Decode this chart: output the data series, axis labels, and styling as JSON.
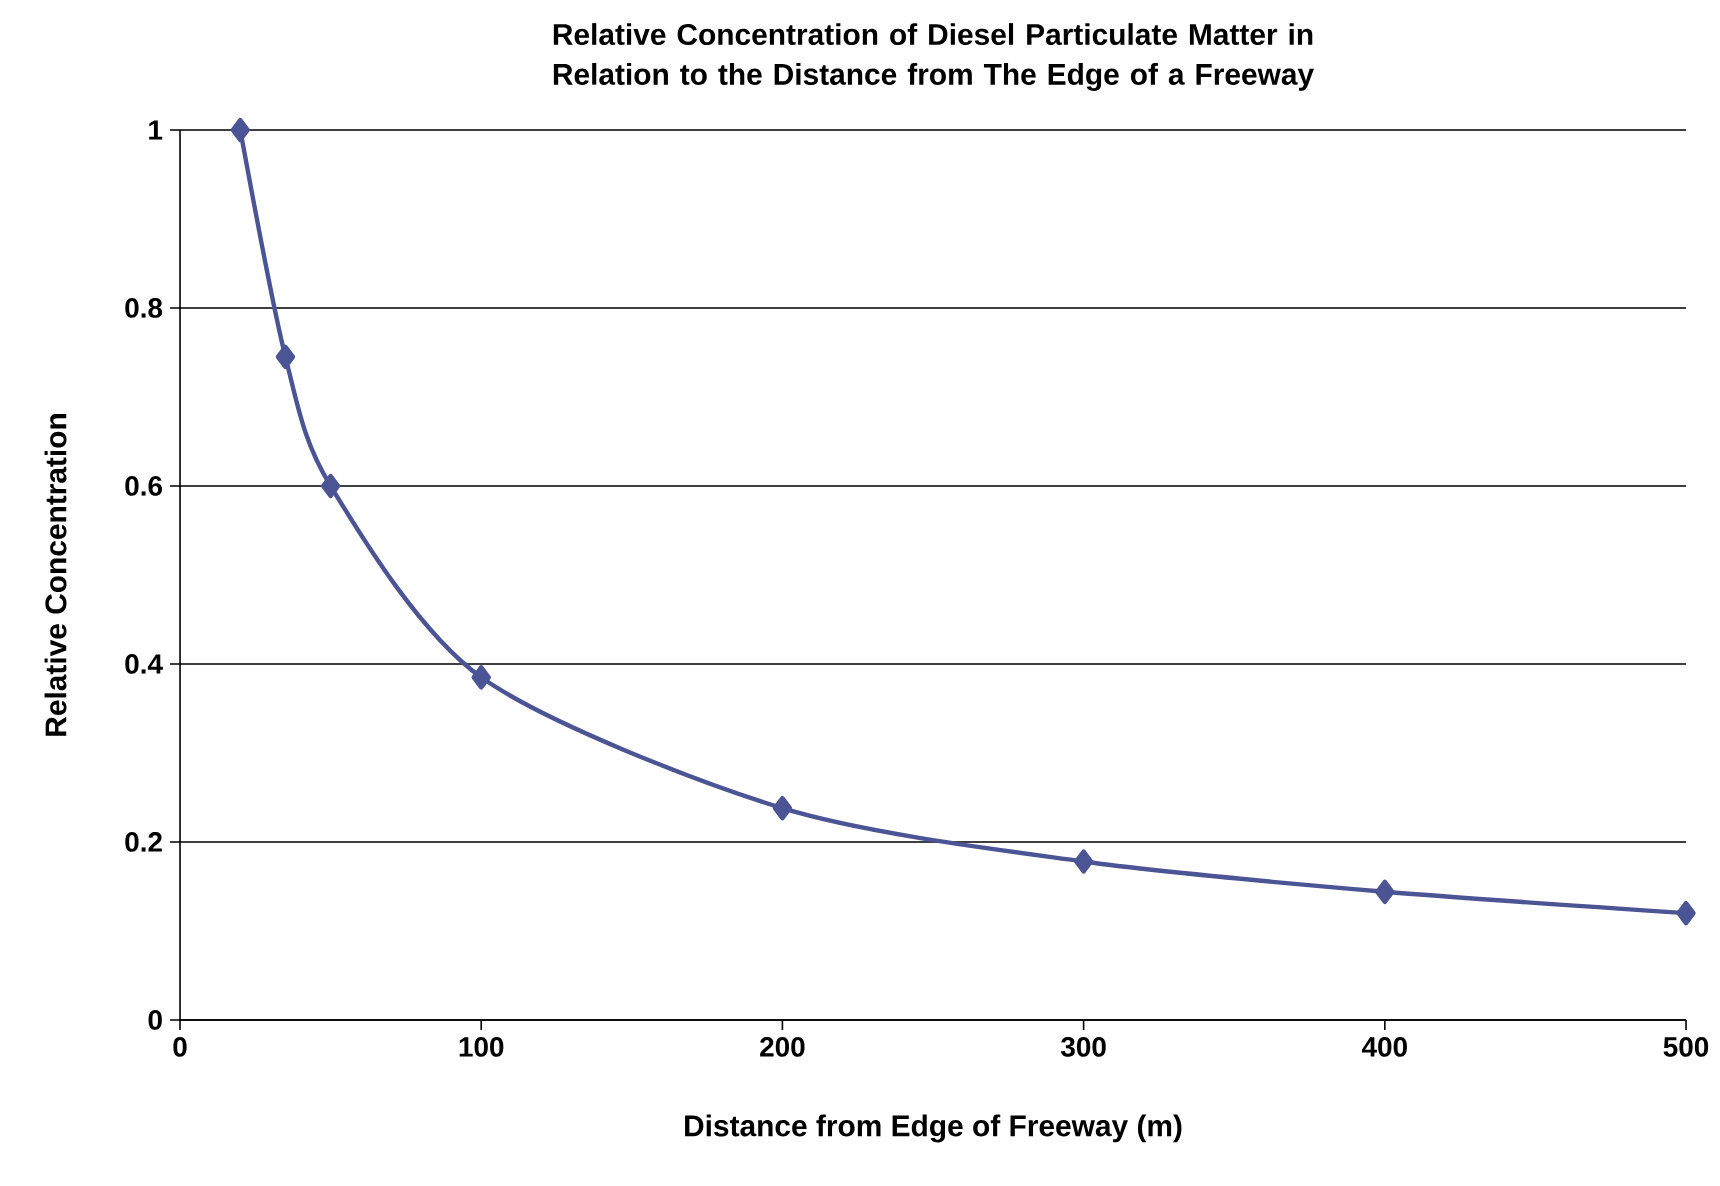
{
  "chart_data": {
    "type": "line",
    "title": "Relative Concentration of Diesel Particulate Matter in Relation to the Distance from The Edge of a Freeway",
    "xlabel": "Distance from Edge of Freeway (m)",
    "ylabel": "Relative Concentration",
    "x": [
      20,
      35,
      50,
      100,
      200,
      300,
      400,
      500
    ],
    "series": [
      {
        "color": "#4b5494",
        "values": [
          1.0,
          0.745,
          0.6,
          0.385,
          0.238,
          0.178,
          0.144,
          0.12
        ]
      }
    ],
    "xlim": [
      0,
      500
    ],
    "xticks": [
      0,
      100,
      200,
      300,
      400,
      500
    ],
    "ylim": [
      0,
      1
    ],
    "yticks": [
      0,
      0.2,
      0.4,
      0.6,
      0.8,
      1
    ],
    "grid": "y",
    "marker": "diamond",
    "line_style": "solid"
  }
}
